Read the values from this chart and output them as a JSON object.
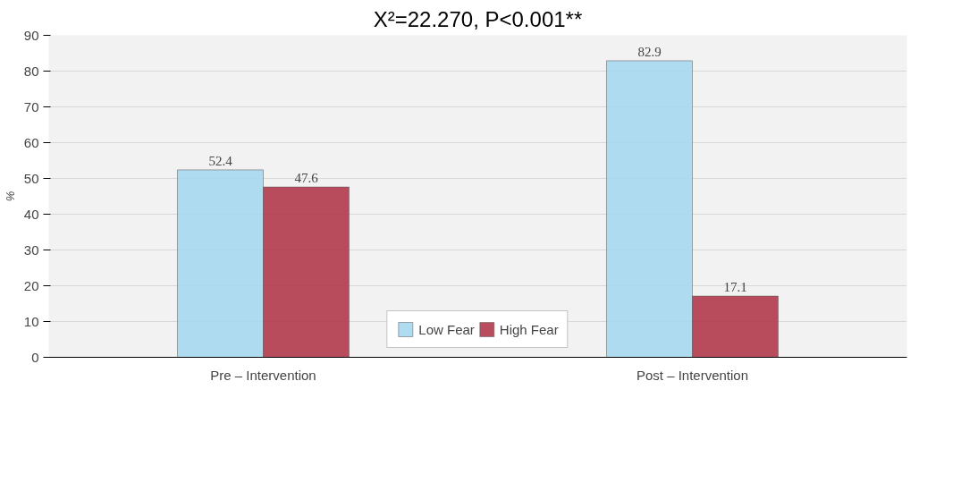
{
  "chart_data": {
    "type": "bar",
    "title": "X²=22.270, P<0.001**",
    "ylabel": "%",
    "categories": [
      "Pre – Intervention",
      "Post – Intervention"
    ],
    "series": [
      {
        "name": "Low Fear",
        "color": "#a6d8f0",
        "values": [
          52.4,
          82.9
        ]
      },
      {
        "name": "High Fear",
        "color": "#b23a4b",
        "values": [
          47.6,
          17.1
        ]
      }
    ],
    "ylim": [
      0,
      90
    ],
    "yticks": [
      0,
      10,
      20,
      30,
      40,
      50,
      60,
      70,
      80,
      90
    ],
    "grid": "y",
    "legend": "bottom",
    "data_labels": true
  }
}
